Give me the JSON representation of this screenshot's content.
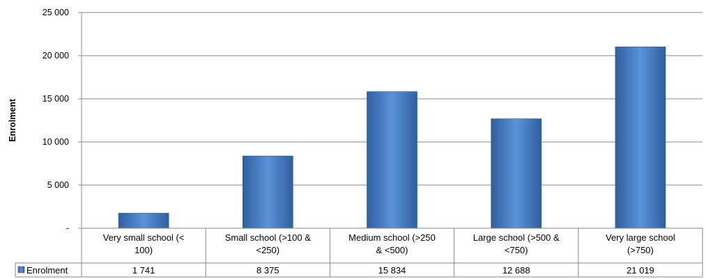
{
  "chart_data": {
    "type": "bar",
    "title": "",
    "xlabel": "",
    "ylabel": "Enrolment",
    "ylim": [
      0,
      25000
    ],
    "y_ticks": [
      {
        "value": 0,
        "label": "-"
      },
      {
        "value": 5000,
        "label": "5 000"
      },
      {
        "value": 10000,
        "label": "10 000"
      },
      {
        "value": 15000,
        "label": "15 000"
      },
      {
        "value": 20000,
        "label": "20 000"
      },
      {
        "value": 25000,
        "label": "25 000"
      }
    ],
    "categories": [
      [
        "Very small school (<",
        "100)"
      ],
      [
        "Small school (>100 &",
        "<250)"
      ],
      [
        "Medium school (>250",
        "& <500)"
      ],
      [
        "Large school (>500 &",
        "<750)"
      ],
      [
        "Very large school",
        "(>750)"
      ]
    ],
    "series": [
      {
        "name": "Enrolment",
        "values": [
          1741,
          8375,
          15834,
          12688,
          21019
        ],
        "value_labels": [
          "1 741",
          "8 375",
          "15 834",
          "12 688",
          "21 019"
        ],
        "color": "#4a7ebb"
      }
    ],
    "grid": true,
    "legend": "data-table"
  }
}
